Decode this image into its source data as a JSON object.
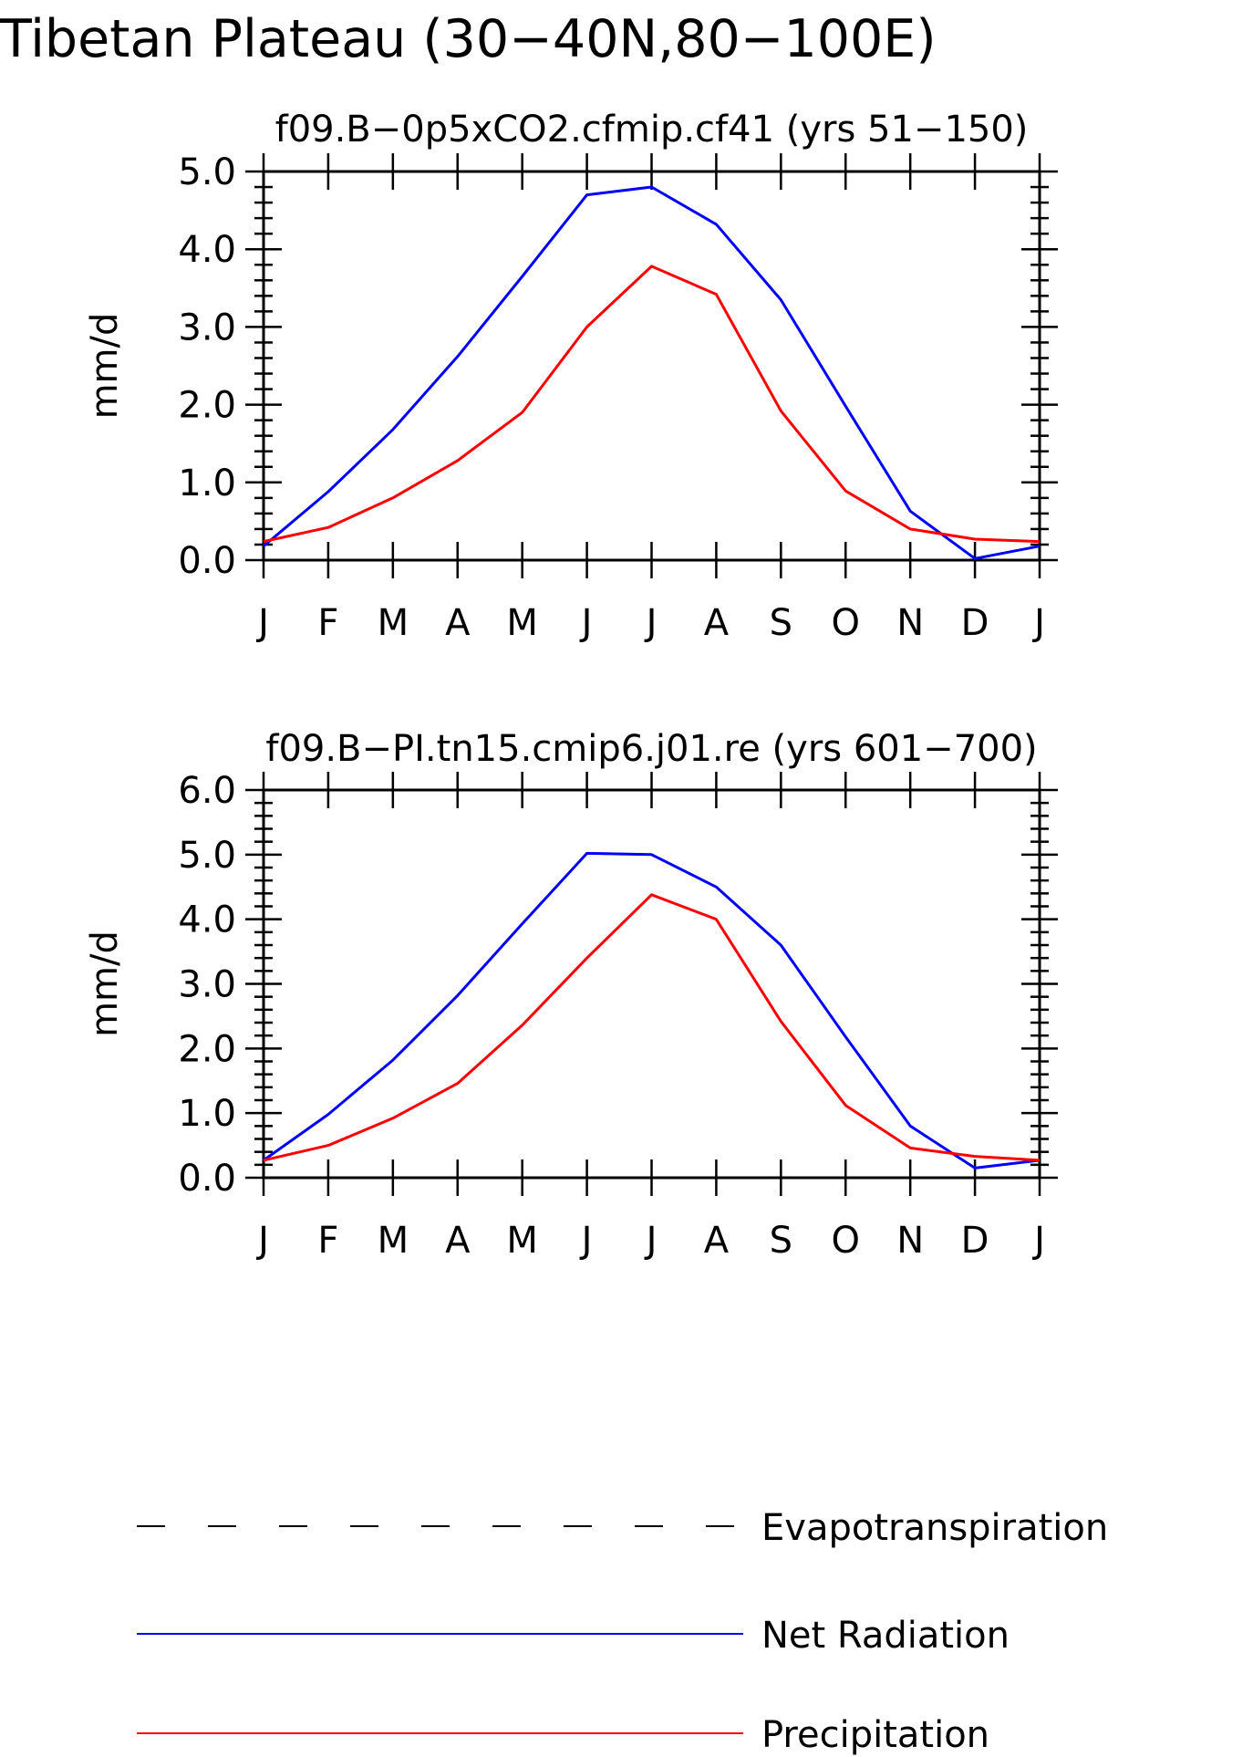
{
  "figure": {
    "title": "Tibetan Plateau (30−40N,80−100E)"
  },
  "months": [
    "J",
    "F",
    "M",
    "A",
    "M",
    "J",
    "J",
    "A",
    "S",
    "O",
    "N",
    "D",
    "J"
  ],
  "colors": {
    "evapotranspiration": "#000000",
    "net_radiation": "#0000ff",
    "precipitation": "#ff0000"
  },
  "legend": {
    "items": [
      {
        "key": "evapotranspiration",
        "label": "Evapotranspiration",
        "style": "dashed"
      },
      {
        "key": "net_radiation",
        "label": "Net Radiation",
        "style": "solid"
      },
      {
        "key": "precipitation",
        "label": "Precipitation",
        "style": "solid"
      }
    ]
  },
  "chart_data": [
    {
      "type": "line",
      "title": "f09.B−0p5xCO2.cfmip.cf41 (yrs 51−150)",
      "xlabel": "",
      "ylabel": "mm/d",
      "categories": [
        "J",
        "F",
        "M",
        "A",
        "M",
        "J",
        "J",
        "A",
        "S",
        "O",
        "N",
        "D",
        "J"
      ],
      "ylim": [
        0,
        5
      ],
      "yticks": [
        "0.0",
        "1.0",
        "2.0",
        "3.0",
        "4.0",
        "5.0"
      ],
      "grid": false,
      "series": [
        {
          "name": "Net Radiation",
          "color": "#0000ff",
          "values": [
            0.18,
            0.88,
            1.68,
            2.62,
            3.65,
            4.7,
            4.8,
            4.32,
            3.35,
            1.98,
            0.63,
            0.02,
            0.18
          ]
        },
        {
          "name": "Precipitation",
          "color": "#ff0000",
          "values": [
            0.24,
            0.42,
            0.8,
            1.28,
            1.9,
            3.0,
            3.78,
            3.42,
            1.92,
            0.89,
            0.4,
            0.27,
            0.24
          ]
        }
      ]
    },
    {
      "type": "line",
      "title": "f09.B−PI.tn15.cmip6.j01.re (yrs 601−700)",
      "xlabel": "",
      "ylabel": "mm/d",
      "categories": [
        "J",
        "F",
        "M",
        "A",
        "M",
        "J",
        "J",
        "A",
        "S",
        "O",
        "N",
        "D",
        "J"
      ],
      "ylim": [
        0,
        6
      ],
      "yticks": [
        "0.0",
        "1.0",
        "2.0",
        "3.0",
        "4.0",
        "5.0",
        "6.0"
      ],
      "grid": false,
      "series": [
        {
          "name": "Net Radiation",
          "color": "#0000ff",
          "values": [
            0.27,
            0.98,
            1.82,
            2.82,
            3.93,
            5.02,
            5.0,
            4.5,
            3.6,
            2.18,
            0.8,
            0.15,
            0.27
          ]
        },
        {
          "name": "Precipitation",
          "color": "#ff0000",
          "values": [
            0.27,
            0.5,
            0.92,
            1.46,
            2.36,
            3.4,
            4.38,
            4.0,
            2.42,
            1.12,
            0.46,
            0.33,
            0.27
          ]
        }
      ]
    }
  ]
}
